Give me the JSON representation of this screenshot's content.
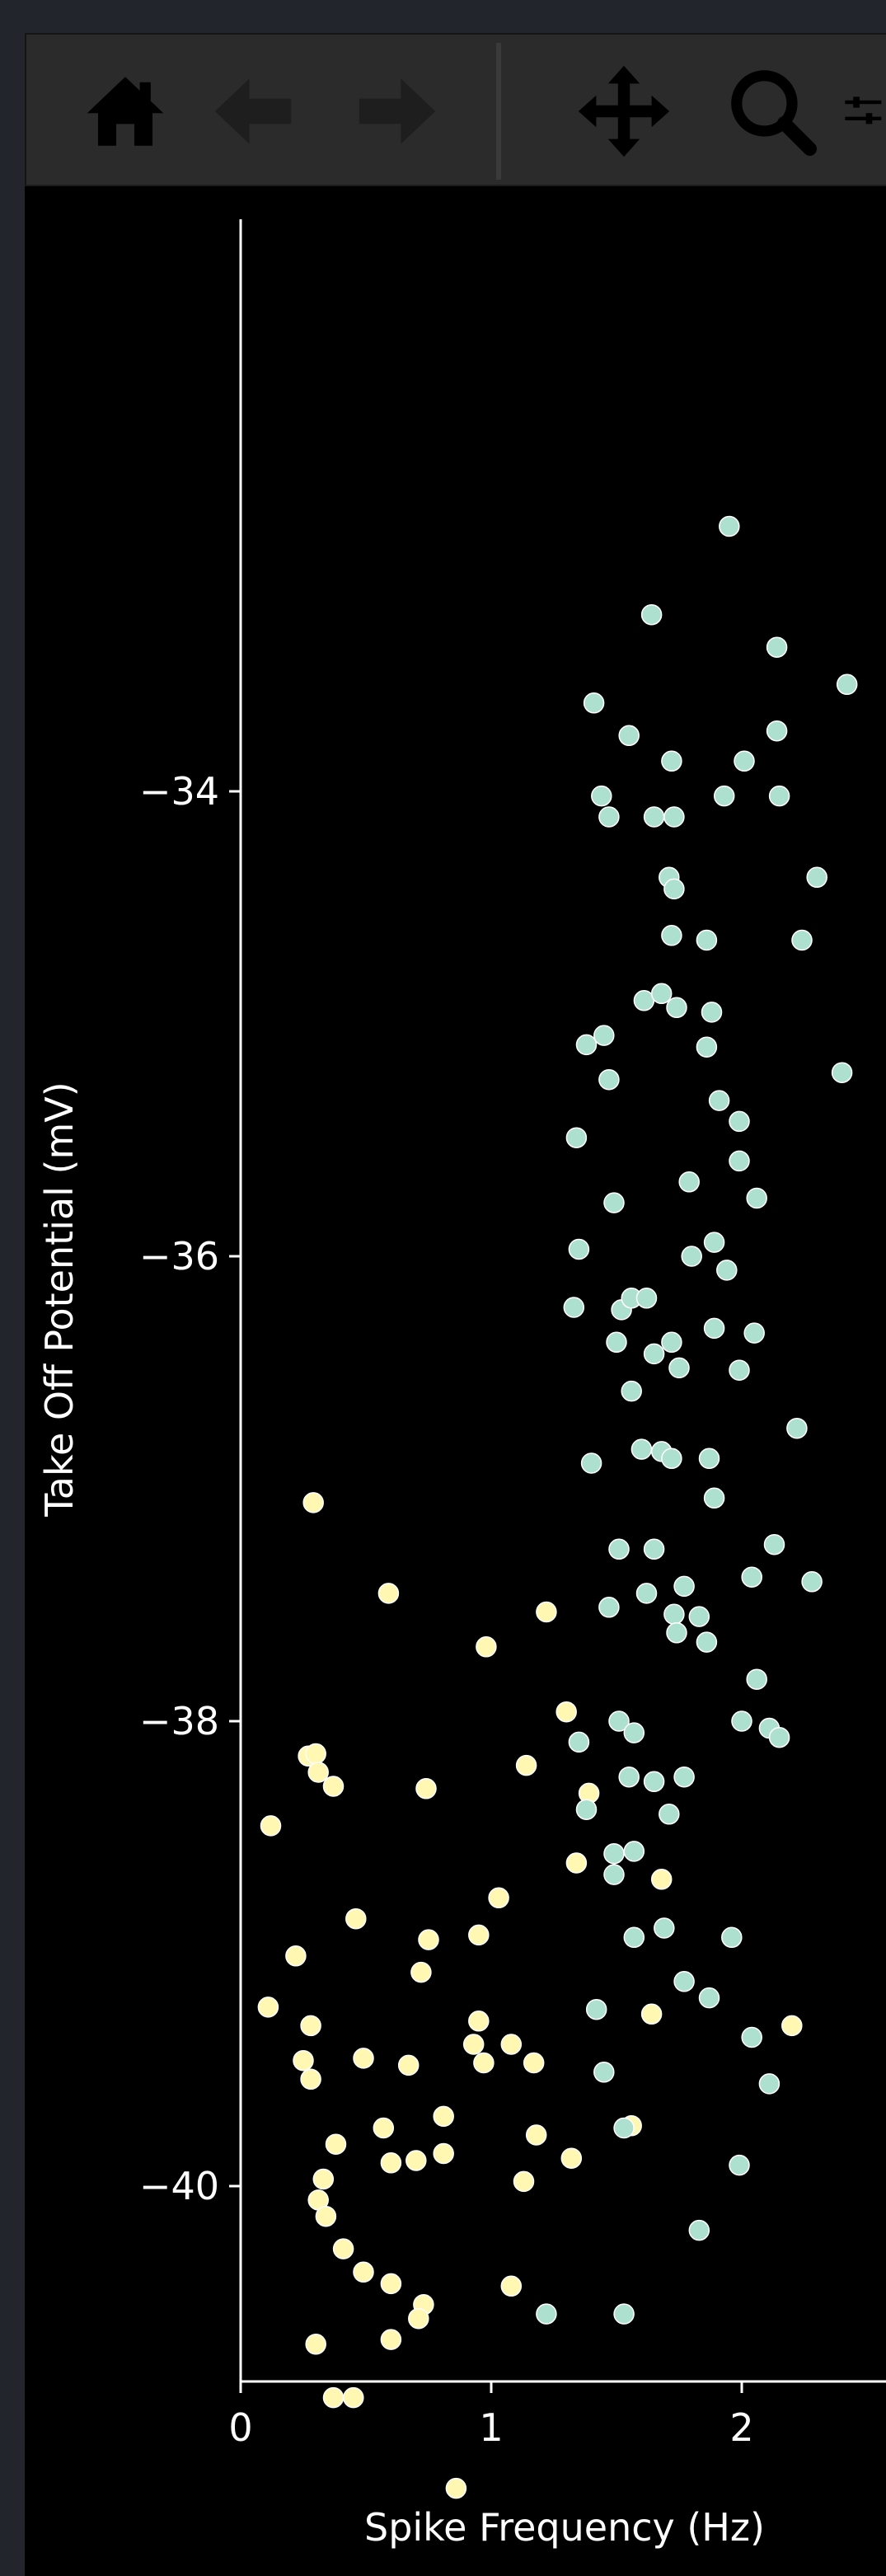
{
  "toolbar": {
    "tools": [
      {
        "name": "home-button",
        "icon": "home-icon",
        "enabled": true
      },
      {
        "name": "back-button",
        "icon": "arrow-left-icon",
        "enabled": false
      },
      {
        "name": "forward-button",
        "icon": "arrow-right-icon",
        "enabled": false
      },
      {
        "name": "pan-button",
        "icon": "move-icon",
        "enabled": true
      },
      {
        "name": "zoom-button",
        "icon": "magnifier-icon",
        "enabled": true
      },
      {
        "name": "configure-button",
        "icon": "sliders-icon",
        "enabled": true
      }
    ]
  },
  "colors": {
    "background": "#000000",
    "window": "#22252b",
    "toolbar": "#2b2b2b",
    "series_a": "#fff7b2",
    "series_b": "#aee0cf",
    "axis": "#ffffff"
  },
  "chart_data": {
    "type": "scatter",
    "title": "",
    "xlabel": "Spike Frequency (Hz)",
    "ylabel": "Take Off Potential (mV)",
    "xlim": [
      0,
      2.5
    ],
    "ylim": [
      -41.7,
      -32.4
    ],
    "xticks": [
      0,
      1,
      2
    ],
    "xtick_labels": [
      "0",
      "1",
      "2"
    ],
    "yticks": [
      -34,
      -36,
      -38,
      -40
    ],
    "ytick_labels": [
      "−34",
      "−36",
      "−38",
      "−40"
    ],
    "grid": false,
    "legend": "none",
    "series": [
      {
        "color": "#fff7b2",
        "points": [
          [
            0.29,
            -37.06
          ],
          [
            0.12,
            -38.45
          ],
          [
            0.27,
            -38.15
          ],
          [
            0.3,
            -38.14
          ],
          [
            0.31,
            -38.22
          ],
          [
            0.37,
            -38.28
          ],
          [
            0.59,
            -37.45
          ],
          [
            0.98,
            -37.68
          ],
          [
            1.22,
            -37.53
          ],
          [
            0.74,
            -38.29
          ],
          [
            1.14,
            -38.19
          ],
          [
            1.3,
            -37.96
          ],
          [
            1.39,
            -38.31
          ],
          [
            1.34,
            -38.61
          ],
          [
            1.68,
            -38.68
          ],
          [
            1.03,
            -38.76
          ],
          [
            0.46,
            -38.85
          ],
          [
            0.22,
            -39.01
          ],
          [
            0.75,
            -38.94
          ],
          [
            0.95,
            -38.92
          ],
          [
            0.72,
            -39.08
          ],
          [
            0.11,
            -39.23
          ],
          [
            0.28,
            -39.31
          ],
          [
            0.25,
            -39.46
          ],
          [
            0.28,
            -39.54
          ],
          [
            0.49,
            -39.45
          ],
          [
            0.67,
            -39.48
          ],
          [
            0.95,
            -39.29
          ],
          [
            0.93,
            -39.39
          ],
          [
            0.97,
            -39.47
          ],
          [
            1.08,
            -39.39
          ],
          [
            1.17,
            -39.47
          ],
          [
            0.81,
            -39.7
          ],
          [
            0.57,
            -39.75
          ],
          [
            0.6,
            -39.9
          ],
          [
            0.7,
            -39.89
          ],
          [
            0.81,
            -39.86
          ],
          [
            0.38,
            -39.82
          ],
          [
            0.33,
            -39.97
          ],
          [
            1.18,
            -39.78
          ],
          [
            1.32,
            -39.88
          ],
          [
            1.56,
            -39.74
          ],
          [
            1.13,
            -39.98
          ],
          [
            0.31,
            -40.06
          ],
          [
            0.34,
            -40.13
          ],
          [
            0.41,
            -40.27
          ],
          [
            0.49,
            -40.37
          ],
          [
            0.6,
            -40.42
          ],
          [
            0.73,
            -40.51
          ],
          [
            0.71,
            -40.57
          ],
          [
            0.6,
            -40.66
          ],
          [
            0.3,
            -40.68
          ],
          [
            1.08,
            -40.43
          ],
          [
            0.37,
            -40.91
          ],
          [
            0.45,
            -40.91
          ],
          [
            0.86,
            -41.3
          ],
          [
            1.64,
            -39.26
          ],
          [
            2.2,
            -39.31
          ]
        ]
      },
      {
        "color": "#aee0cf",
        "points": [
          [
            1.95,
            -32.86
          ],
          [
            1.64,
            -33.24
          ],
          [
            2.14,
            -33.38
          ],
          [
            2.42,
            -33.54
          ],
          [
            1.41,
            -33.62
          ],
          [
            1.55,
            -33.76
          ],
          [
            2.14,
            -33.74
          ],
          [
            1.72,
            -33.87
          ],
          [
            2.01,
            -33.87
          ],
          [
            1.44,
            -34.02
          ],
          [
            1.47,
            -34.11
          ],
          [
            1.65,
            -34.11
          ],
          [
            1.73,
            -34.11
          ],
          [
            1.93,
            -34.02
          ],
          [
            2.15,
            -34.02
          ],
          [
            1.71,
            -34.37
          ],
          [
            1.73,
            -34.42
          ],
          [
            2.3,
            -34.37
          ],
          [
            1.72,
            -34.62
          ],
          [
            1.86,
            -34.64
          ],
          [
            2.24,
            -34.64
          ],
          [
            1.61,
            -34.9
          ],
          [
            1.68,
            -34.87
          ],
          [
            1.74,
            -34.93
          ],
          [
            1.88,
            -34.95
          ],
          [
            1.38,
            -35.09
          ],
          [
            1.45,
            -35.05
          ],
          [
            1.86,
            -35.1
          ],
          [
            2.4,
            -35.21
          ],
          [
            1.47,
            -35.24
          ],
          [
            1.91,
            -35.33
          ],
          [
            1.99,
            -35.42
          ],
          [
            1.34,
            -35.49
          ],
          [
            1.99,
            -35.59
          ],
          [
            1.79,
            -35.68
          ],
          [
            1.49,
            -35.77
          ],
          [
            2.06,
            -35.75
          ],
          [
            1.89,
            -35.94
          ],
          [
            1.35,
            -35.97
          ],
          [
            1.8,
            -36.0
          ],
          [
            1.94,
            -36.06
          ],
          [
            1.33,
            -36.22
          ],
          [
            1.52,
            -36.23
          ],
          [
            1.56,
            -36.18
          ],
          [
            1.62,
            -36.18
          ],
          [
            1.89,
            -36.31
          ],
          [
            2.05,
            -36.33
          ],
          [
            1.5,
            -36.37
          ],
          [
            1.72,
            -36.37
          ],
          [
            1.65,
            -36.42
          ],
          [
            1.75,
            -36.48
          ],
          [
            1.99,
            -36.49
          ],
          [
            1.56,
            -36.58
          ],
          [
            2.22,
            -36.74
          ],
          [
            1.6,
            -36.83
          ],
          [
            1.68,
            -36.84
          ],
          [
            1.72,
            -36.87
          ],
          [
            1.87,
            -36.87
          ],
          [
            1.4,
            -36.89
          ],
          [
            1.89,
            -37.04
          ],
          [
            1.51,
            -37.26
          ],
          [
            1.65,
            -37.26
          ],
          [
            2.13,
            -37.24
          ],
          [
            1.77,
            -37.42
          ],
          [
            2.04,
            -37.38
          ],
          [
            2.28,
            -37.4
          ],
          [
            1.62,
            -37.45
          ],
          [
            1.47,
            -37.51
          ],
          [
            1.73,
            -37.54
          ],
          [
            1.83,
            -37.55
          ],
          [
            1.74,
            -37.62
          ],
          [
            1.86,
            -37.66
          ],
          [
            2.06,
            -37.82
          ],
          [
            1.35,
            -38.09
          ],
          [
            1.51,
            -38.0
          ],
          [
            1.57,
            -38.05
          ],
          [
            2.0,
            -38.0
          ],
          [
            2.11,
            -38.03
          ],
          [
            2.15,
            -38.07
          ],
          [
            1.55,
            -38.24
          ],
          [
            1.65,
            -38.26
          ],
          [
            1.77,
            -38.24
          ],
          [
            1.38,
            -38.38
          ],
          [
            1.71,
            -38.4
          ],
          [
            1.49,
            -38.57
          ],
          [
            1.57,
            -38.56
          ],
          [
            1.49,
            -38.66
          ],
          [
            1.69,
            -38.89
          ],
          [
            1.57,
            -38.93
          ],
          [
            1.96,
            -38.93
          ],
          [
            1.77,
            -39.12
          ],
          [
            1.42,
            -39.24
          ],
          [
            1.87,
            -39.19
          ],
          [
            2.04,
            -39.36
          ],
          [
            1.45,
            -39.51
          ],
          [
            2.11,
            -39.56
          ],
          [
            1.53,
            -39.75
          ],
          [
            1.99,
            -39.91
          ],
          [
            1.83,
            -40.19
          ],
          [
            1.22,
            -40.55
          ],
          [
            1.53,
            -40.55
          ]
        ]
      }
    ]
  }
}
